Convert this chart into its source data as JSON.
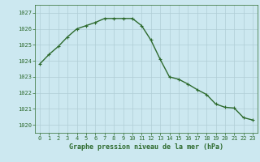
{
  "x": [
    0,
    1,
    2,
    3,
    4,
    5,
    6,
    7,
    8,
    9,
    10,
    11,
    12,
    13,
    14,
    15,
    16,
    17,
    18,
    19,
    20,
    21,
    22,
    23
  ],
  "y": [
    1023.8,
    1024.4,
    1024.9,
    1025.5,
    1026.0,
    1026.2,
    1026.4,
    1026.65,
    1026.65,
    1026.65,
    1026.65,
    1026.2,
    1025.3,
    1024.1,
    1023.0,
    1022.85,
    1022.55,
    1022.2,
    1021.9,
    1021.3,
    1021.1,
    1021.05,
    1020.45,
    1020.3
  ],
  "line_color": "#2d6a2d",
  "marker": "+",
  "marker_size": 3,
  "marker_edge_width": 0.8,
  "bg_color": "#cce8f0",
  "grid_color": "#b0cdd6",
  "xlabel": "Graphe pression niveau de la mer (hPa)",
  "xlabel_color": "#2d6a2d",
  "tick_color": "#2d6a2d",
  "ylim": [
    1019.5,
    1027.5
  ],
  "yticks": [
    1020,
    1021,
    1022,
    1023,
    1024,
    1025,
    1026,
    1027
  ],
  "xticks": [
    0,
    1,
    2,
    3,
    4,
    5,
    6,
    7,
    8,
    9,
    10,
    11,
    12,
    13,
    14,
    15,
    16,
    17,
    18,
    19,
    20,
    21,
    22,
    23
  ],
  "linewidth": 1.0,
  "tick_fontsize": 5.0,
  "xlabel_fontsize": 6.0
}
